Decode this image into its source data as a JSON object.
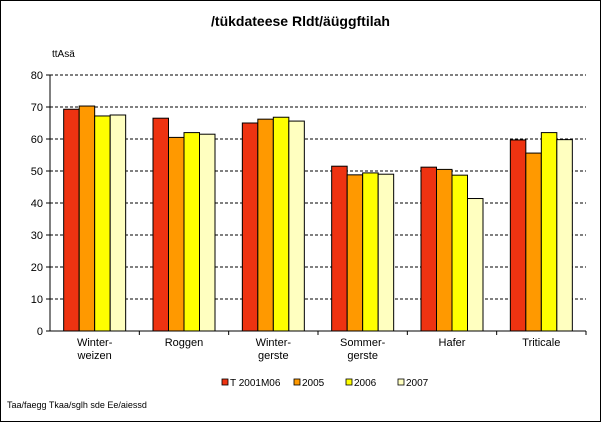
{
  "chart_data": {
    "type": "bar",
    "title": "/tükdateese Rldt/äüggftilah",
    "ylabel": "ttAsä",
    "footnote": "Taa/faegg Tkaa/sglh sde Ee/aiessd",
    "ylim": [
      0,
      80
    ],
    "yticks": [
      0,
      10,
      20,
      30,
      40,
      50,
      60,
      70,
      80
    ],
    "grid": true,
    "legend_position": "bottom",
    "categories": [
      [
        "Winter-",
        "weizen"
      ],
      [
        "Roggen"
      ],
      [
        "Winter-",
        "gerste"
      ],
      [
        "Sommer-",
        "gerste"
      ],
      [
        "Hafer"
      ],
      [
        "Triticale"
      ]
    ],
    "series": [
      {
        "name": "T 2001M06",
        "color": "#ee3311",
        "values": [
          69.3,
          66.5,
          65.0,
          51.5,
          51.2,
          59.7
        ]
      },
      {
        "name": "2005",
        "color": "#ff9900",
        "values": [
          70.3,
          60.5,
          66.2,
          48.8,
          50.5,
          55.6
        ]
      },
      {
        "name": "2006",
        "color": "#ffff00",
        "values": [
          67.2,
          62.0,
          66.8,
          49.4,
          48.7,
          62.0
        ]
      },
      {
        "name": "2007",
        "color": "#ffffc0",
        "values": [
          67.5,
          61.5,
          65.6,
          49.0,
          41.4,
          59.8
        ]
      }
    ]
  }
}
